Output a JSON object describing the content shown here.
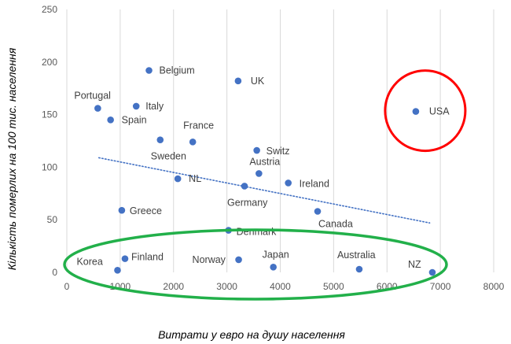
{
  "chart_data": {
    "type": "scatter",
    "xlabel": "Витрати у евро на душу населення",
    "ylabel": "Кількість померлих на 100 тис. населення",
    "xlim": [
      0,
      8000
    ],
    "ylim": [
      0,
      250
    ],
    "xticks": [
      0,
      1000,
      2000,
      3000,
      4000,
      5000,
      6000,
      7000,
      8000
    ],
    "yticks": [
      0,
      50,
      100,
      150,
      200,
      250
    ],
    "grid": "vertical",
    "marker_color": "#4472c4",
    "points": [
      {
        "label": "Portugal",
        "x": 580,
        "y": 156
      },
      {
        "label": "Spain",
        "x": 820,
        "y": 145
      },
      {
        "label": "Italy",
        "x": 1300,
        "y": 158
      },
      {
        "label": "Belgium",
        "x": 1540,
        "y": 192
      },
      {
        "label": "France",
        "x": 2360,
        "y": 124
      },
      {
        "label": "Sweden",
        "x": 1750,
        "y": 126
      },
      {
        "label": "UK",
        "x": 3210,
        "y": 182
      },
      {
        "label": "Switz",
        "x": 3560,
        "y": 116
      },
      {
        "label": "Austria",
        "x": 3600,
        "y": 94
      },
      {
        "label": "NL",
        "x": 2080,
        "y": 89
      },
      {
        "label": "Germany",
        "x": 3330,
        "y": 82
      },
      {
        "label": "Ireland",
        "x": 4150,
        "y": 85
      },
      {
        "label": "Greece",
        "x": 1030,
        "y": 59
      },
      {
        "label": "Canada",
        "x": 4700,
        "y": 58
      },
      {
        "label": "USA",
        "x": 6540,
        "y": 153
      },
      {
        "label": "Denmark",
        "x": 3030,
        "y": 40
      },
      {
        "label": "Finland",
        "x": 1090,
        "y": 13
      },
      {
        "label": "Korea",
        "x": 950,
        "y": 2
      },
      {
        "label": "Norway",
        "x": 3220,
        "y": 12
      },
      {
        "label": "Japan",
        "x": 3870,
        "y": 5
      },
      {
        "label": "Australia",
        "x": 5480,
        "y": 3
      },
      {
        "label": "NZ",
        "x": 6850,
        "y": 0
      }
    ],
    "trendline": {
      "style": "dotted",
      "color": "#4472c4",
      "x": [
        600,
        6800
      ],
      "y": [
        109,
        47
      ]
    },
    "highlights": [
      {
        "shape": "circle",
        "color": "#ff0000",
        "around": [
          "USA"
        ]
      },
      {
        "shape": "ellipse",
        "color": "#22b04a",
        "around": [
          "Denmark",
          "Finland",
          "Korea",
          "Norway",
          "Japan",
          "Australia",
          "NZ"
        ]
      }
    ]
  }
}
